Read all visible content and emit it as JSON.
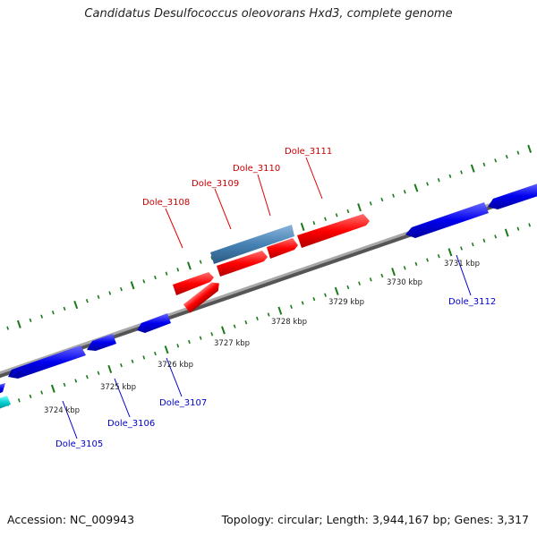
{
  "title": "Candidatus Desulfococcus oleovorans Hxd3, complete genome",
  "footer": {
    "accession": "Accession: NC_009943",
    "summary": "Topology: circular; Length: 3,944,167 bp; Genes: 3,317"
  },
  "colors": {
    "backbone": "#808080",
    "tick": "#1a7a1a",
    "forward_gene": "#ff0000",
    "reverse_gene": "#0000ee",
    "highlight_gene": "#4682b4",
    "other_gene": "#00cccc",
    "forward_label": "#cc0000",
    "reverse_label": "#0000cc"
  },
  "scale_labels": [
    "3724 kbp",
    "3725 kbp",
    "3726 kbp",
    "3727 kbp",
    "3728 kbp",
    "3729 kbp",
    "3730 kbp",
    "3731 kbp"
  ],
  "gene_labels": {
    "forward": [
      "Dole_3108",
      "Dole_3109",
      "Dole_3110",
      "Dole_3111"
    ],
    "reverse": [
      "Dole_3105",
      "Dole_3106",
      "Dole_3107",
      "Dole_3112"
    ]
  }
}
